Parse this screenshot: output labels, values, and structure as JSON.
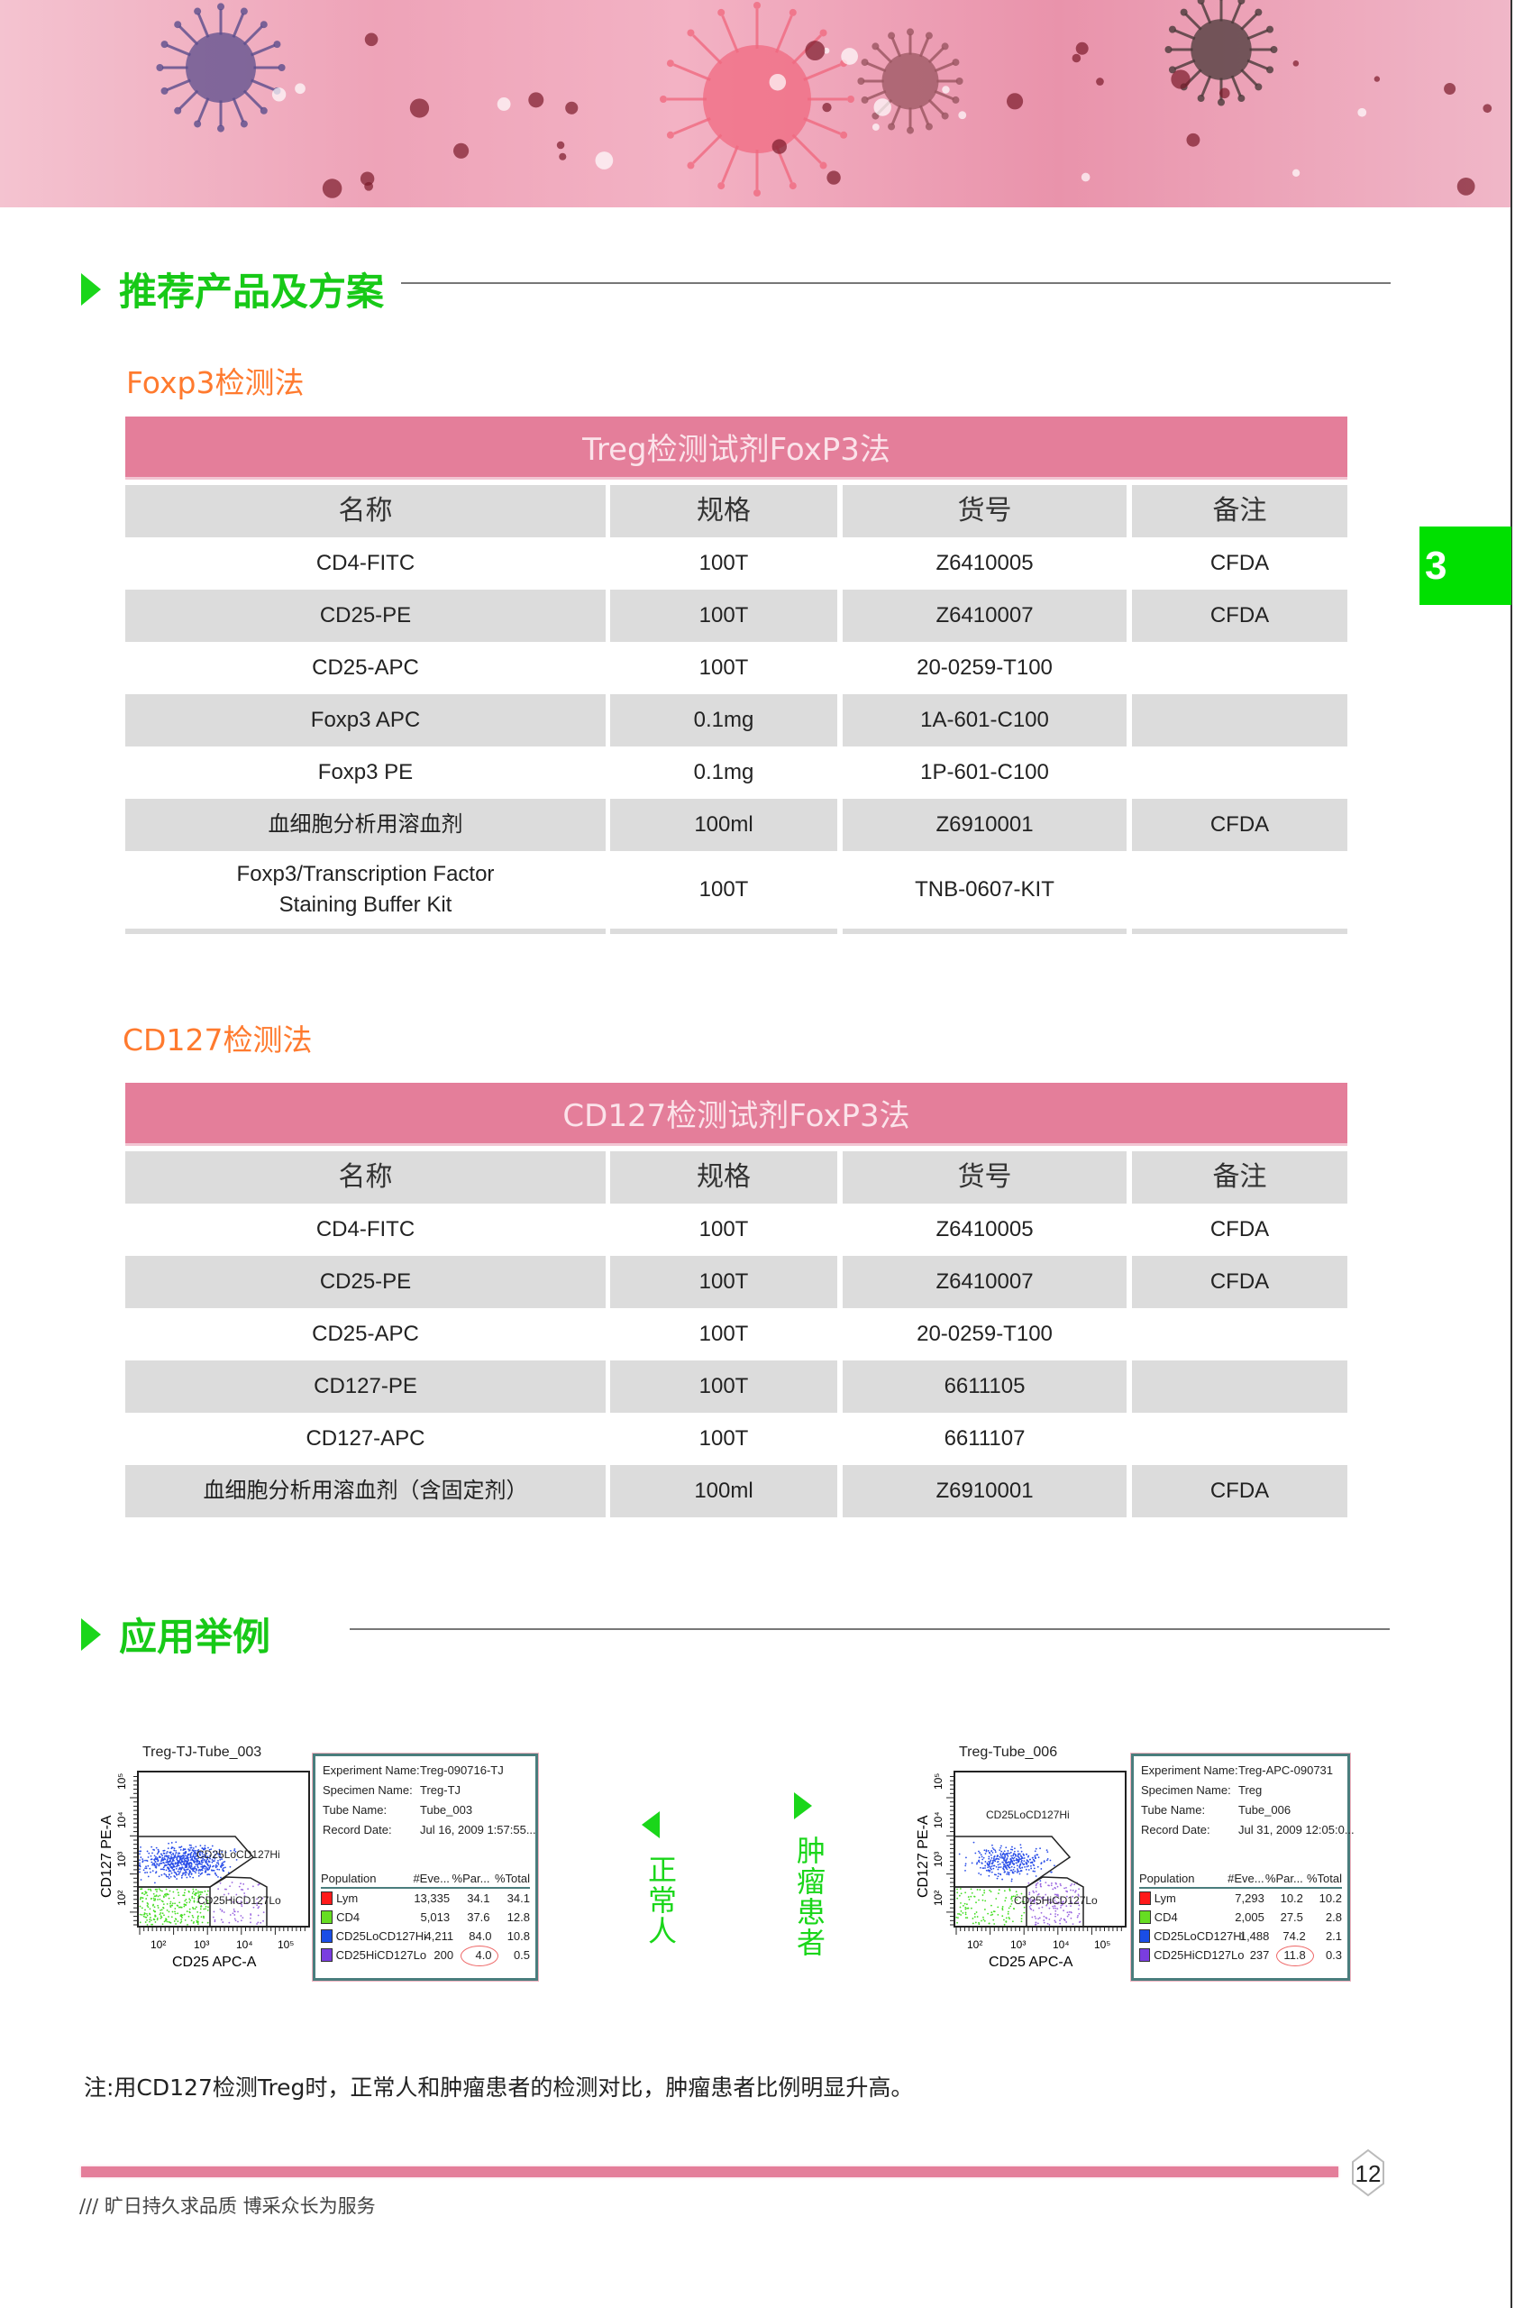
{
  "section1_title": "推荐产品及方案",
  "section2_title": "应用举例",
  "chapter_tab": "3",
  "tables": [
    {
      "subtitle": "Foxp3检测法",
      "title": "Treg检测试剂FoxP3法",
      "headers": [
        "名称",
        "规格",
        "货号",
        "备注"
      ],
      "rows": [
        [
          "CD4-FITC",
          "100T",
          "Z6410005",
          "CFDA"
        ],
        [
          "CD25-PE",
          "100T",
          "Z6410007",
          "CFDA"
        ],
        [
          "CD25-APC",
          "100T",
          "20-0259-T100",
          ""
        ],
        [
          "Foxp3 APC",
          "0.1mg",
          "1A-601-C100",
          ""
        ],
        [
          "Foxp3 PE",
          "0.1mg",
          "1P-601-C100",
          ""
        ],
        [
          "血细胞分析用溶血剂",
          "100ml",
          "Z6910001",
          "CFDA"
        ],
        [
          "Foxp3/Transcription Factor\nStaining Buffer Kit",
          "100T",
          "TNB-0607-KIT",
          ""
        ]
      ]
    },
    {
      "subtitle": "CD127检测法",
      "title": "CD127检测试剂FoxP3法",
      "headers": [
        "名称",
        "规格",
        "货号",
        "备注"
      ],
      "rows": [
        [
          "CD4-FITC",
          "100T",
          "Z6410005",
          "CFDA"
        ],
        [
          "CD25-PE",
          "100T",
          "Z6410007",
          "CFDA"
        ],
        [
          "CD25-APC",
          "100T",
          "20-0259-T100",
          ""
        ],
        [
          "CD127-PE",
          "100T",
          "6611105",
          ""
        ],
        [
          "CD127-APC",
          "100T",
          "6611107",
          ""
        ],
        [
          "血细胞分析用溶血剂（含固定剂）",
          "100ml",
          "Z6910001",
          "CFDA"
        ]
      ]
    }
  ],
  "figures": [
    {
      "plot_title": "Treg-TJ-Tube_003",
      "y_axis": "CD127 PE-A",
      "x_axis": "CD25 APC-A",
      "x_ticks": [
        "10²",
        "10³",
        "10⁴",
        "10⁵"
      ],
      "y_ticks": [
        "10²",
        "10³",
        "10⁴",
        "10⁵"
      ],
      "gate_labels": [
        "CD25LoCD127Hi",
        "CD25HiCD127Lo"
      ],
      "info": [
        [
          "Experiment Name:",
          "Treg-090716-TJ"
        ],
        [
          "Specimen Name:",
          "Treg-TJ"
        ],
        [
          "Tube Name:",
          "Tube_003"
        ],
        [
          "Record Date:",
          "Jul 16, 2009 1:57:55..."
        ]
      ],
      "pop_headers": [
        "Population",
        "#Eve...",
        "%Par...",
        "%Total"
      ],
      "populations": [
        [
          "Lym",
          "13,335",
          "34.1",
          "34.1"
        ],
        [
          "CD4",
          "5,013",
          "37.6",
          "12.8"
        ],
        [
          "CD25LoCD127Hi",
          "4,211",
          "84.0",
          "10.8"
        ],
        [
          "CD25HiCD127Lo",
          "200",
          "4.0",
          "0.5"
        ]
      ],
      "group_label": "正常人"
    },
    {
      "plot_title": "Treg-Tube_006",
      "y_axis": "CD127 PE-A",
      "x_axis": "CD25 APC-A",
      "x_ticks": [
        "10²",
        "10³",
        "10⁴",
        "10⁵"
      ],
      "y_ticks": [
        "10²",
        "10³",
        "10⁴",
        "10⁵"
      ],
      "gate_labels": [
        "CD25LoCD127Hi",
        "CD25HiCD127Lo"
      ],
      "info": [
        [
          "Experiment Name:",
          "Treg-APC-090731"
        ],
        [
          "Specimen Name:",
          "Treg"
        ],
        [
          "Tube Name:",
          "Tube_006"
        ],
        [
          "Record Date:",
          "Jul 31, 2009 12:05:0..."
        ]
      ],
      "pop_headers": [
        "Population",
        "#Eve...",
        "%Par...",
        "%Total"
      ],
      "populations": [
        [
          "Lym",
          "7,293",
          "10.2",
          "10.2"
        ],
        [
          "CD4",
          "2,005",
          "27.5",
          "2.8"
        ],
        [
          "CD25LoCD127Hi",
          "1,488",
          "74.2",
          "2.1"
        ],
        [
          "CD25HiCD127Lo",
          "237",
          "11.8",
          "0.3"
        ]
      ],
      "group_label": "肿瘤患者"
    }
  ],
  "population_colors": [
    "#ff1a1a",
    "#66dd22",
    "#1a4de6",
    "#7a3de0"
  ],
  "note": "注:用CD127检测Treg时，正常人和肿瘤患者的检测对比，肿瘤患者比例明显升高。",
  "footer_slogan": "/// 旷日持久求品质 博采众长为服务",
  "page_number": "12",
  "colors": {
    "accent_green": "#1ad61a",
    "table_pink": "#e47e9a",
    "subtitle_orange": "#ff7a2e"
  }
}
